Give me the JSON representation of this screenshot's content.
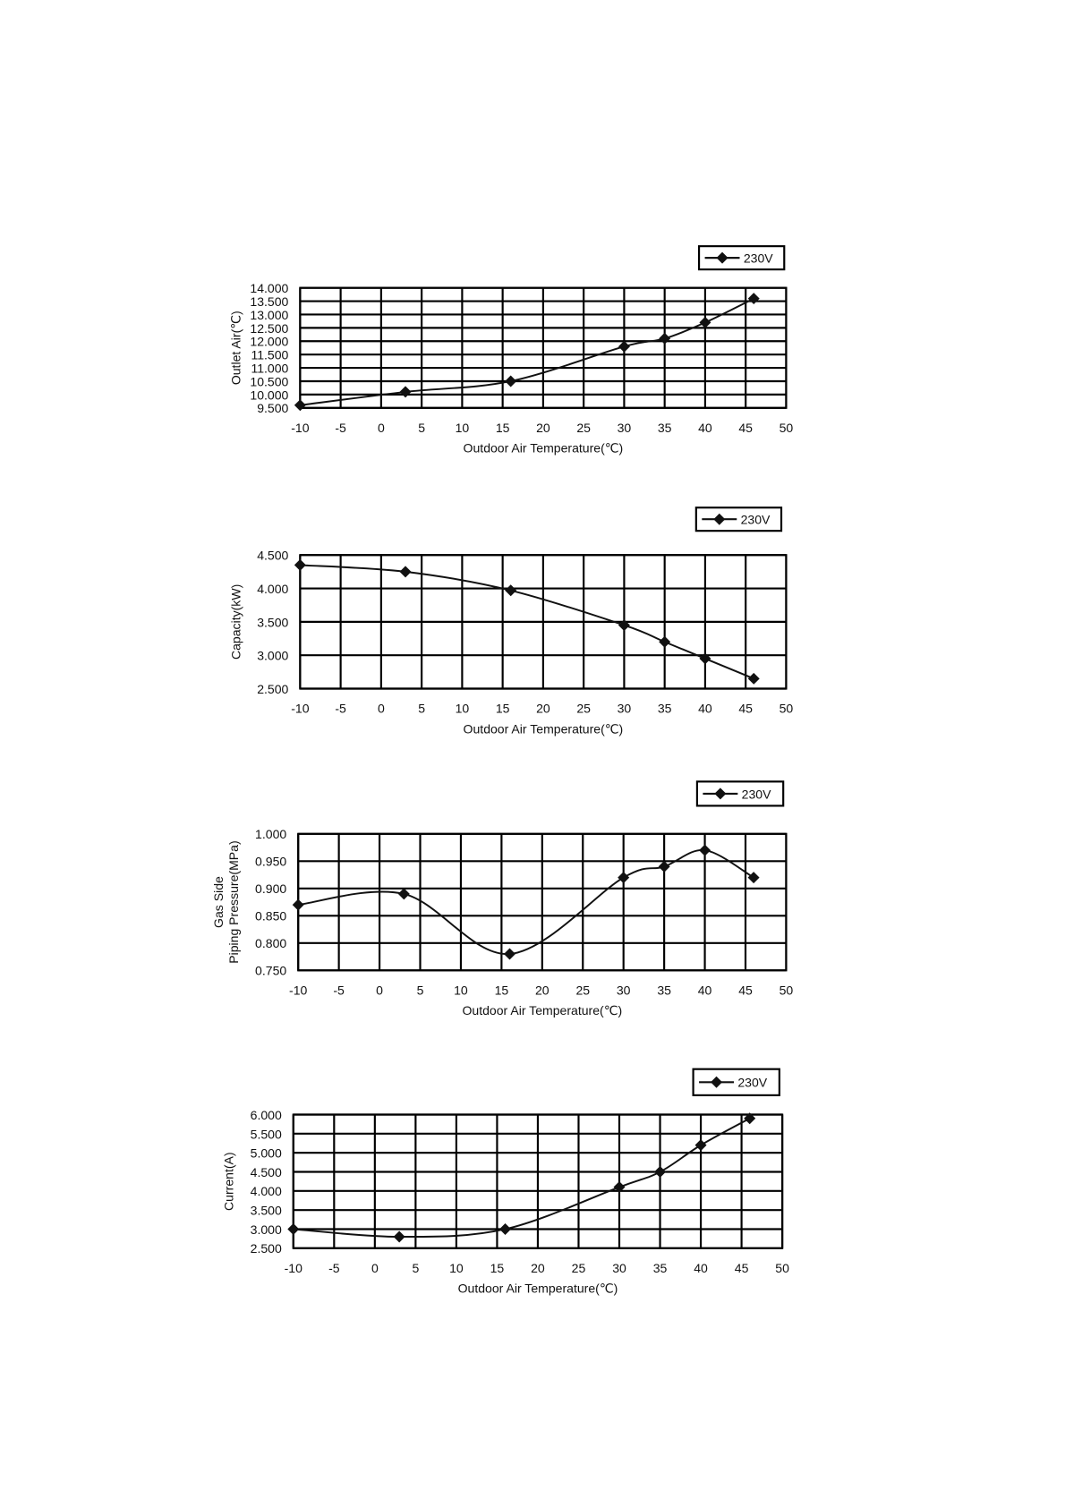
{
  "chart_data": [
    {
      "type": "line",
      "xlabel": "Outdoor Air Temperature(℃)",
      "ylabel": [
        "Outlet Air(℃)"
      ],
      "x": [
        -10,
        3,
        16,
        30,
        35,
        40,
        46
      ],
      "series": [
        {
          "name": "230V",
          "values": [
            9.6,
            10.1,
            10.5,
            11.8,
            12.1,
            12.7,
            13.6
          ]
        }
      ],
      "xlim": [
        -10,
        50
      ],
      "xticks": [
        -10,
        -5,
        0,
        5,
        10,
        15,
        20,
        25,
        30,
        35,
        40,
        45,
        50
      ],
      "ylim": [
        9.5,
        14.0
      ],
      "yticks": [
        "9.500",
        "10.000",
        "10.500",
        "11.000",
        "11.500",
        "12.000",
        "12.500",
        "13.000",
        "13.500",
        "14.000"
      ],
      "grid": true,
      "legend": "top-right",
      "marker": "diamond",
      "color": "#111111"
    },
    {
      "type": "line",
      "xlabel": "Outdoor Air Temperature(℃)",
      "ylabel": [
        "Capacity(kW)"
      ],
      "x": [
        -10,
        3,
        16,
        30,
        35,
        40,
        46
      ],
      "series": [
        {
          "name": "230V",
          "values": [
            4.35,
            4.25,
            3.97,
            3.45,
            3.2,
            2.95,
            2.65
          ]
        }
      ],
      "xlim": [
        -10,
        50
      ],
      "xticks": [
        -10,
        -5,
        0,
        5,
        10,
        15,
        20,
        25,
        30,
        35,
        40,
        45,
        50
      ],
      "ylim": [
        2.5,
        4.5
      ],
      "yticks": [
        "2.500",
        "3.000",
        "3.500",
        "4.000",
        "4.500"
      ],
      "grid": true,
      "legend": "top-right",
      "marker": "diamond",
      "color": "#111111"
    },
    {
      "type": "line",
      "xlabel": "Outdoor Air Temperature(℃)",
      "ylabel": [
        "Gas Side",
        "Piping Pressure(MPa)"
      ],
      "x": [
        -10,
        3,
        16,
        30,
        35,
        40,
        46
      ],
      "series": [
        {
          "name": "230V",
          "values": [
            0.87,
            0.89,
            0.78,
            0.92,
            0.94,
            0.97,
            0.92
          ]
        }
      ],
      "xlim": [
        -10,
        50
      ],
      "xticks": [
        -10,
        -5,
        0,
        5,
        10,
        15,
        20,
        25,
        30,
        35,
        40,
        45,
        50
      ],
      "ylim": [
        0.75,
        1.0
      ],
      "yticks": [
        "0.750",
        "0.800",
        "0.850",
        "0.900",
        "0.950",
        "1.000"
      ],
      "grid": true,
      "legend": "top-right",
      "marker": "diamond",
      "color": "#111111"
    },
    {
      "type": "line",
      "xlabel": "Outdoor Air Temperature(℃)",
      "ylabel": [
        "Current(A)"
      ],
      "x": [
        -10,
        3,
        16,
        30,
        35,
        40,
        46
      ],
      "series": [
        {
          "name": "230V",
          "values": [
            3.0,
            2.8,
            3.0,
            4.1,
            4.5,
            5.2,
            5.9
          ]
        }
      ],
      "xlim": [
        -10,
        50
      ],
      "xticks": [
        -10,
        -5,
        0,
        5,
        10,
        15,
        20,
        25,
        30,
        35,
        40,
        45,
        50
      ],
      "ylim": [
        2.5,
        6.0
      ],
      "yticks": [
        "2.500",
        "3.000",
        "3.500",
        "4.000",
        "4.500",
        "5.000",
        "5.500",
        "6.000"
      ],
      "grid": true,
      "legend": "top-right",
      "marker": "diamond",
      "color": "#111111"
    }
  ]
}
